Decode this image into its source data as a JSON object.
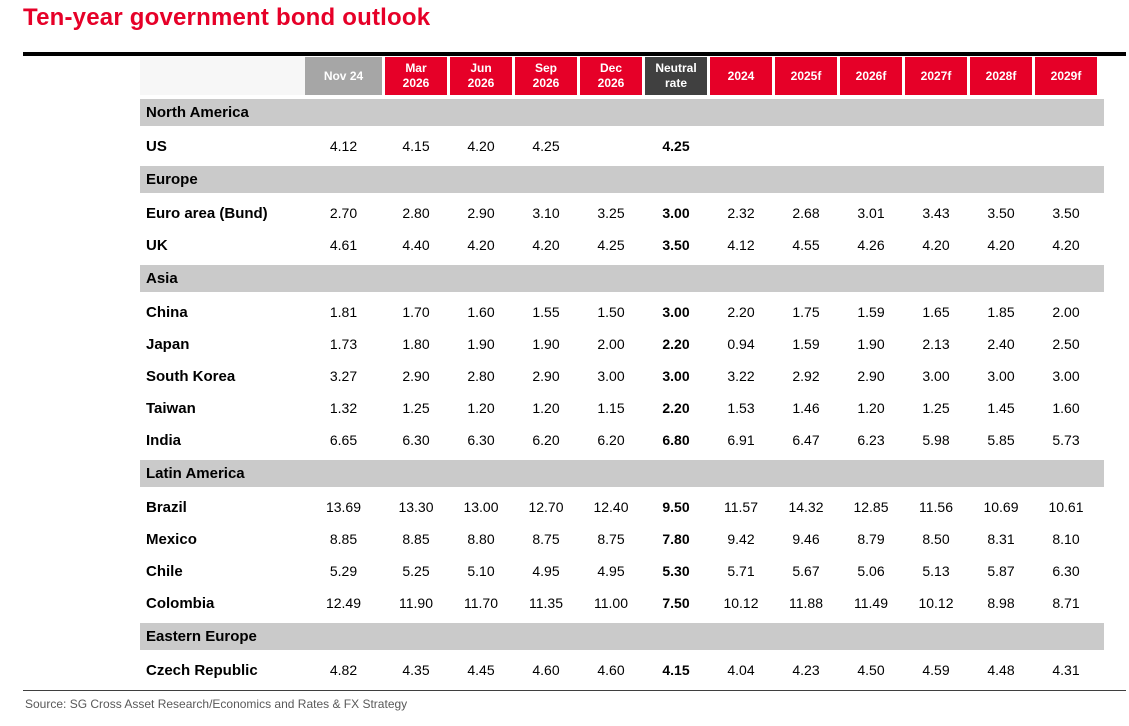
{
  "title": "Ten-year government bond outlook",
  "source": "Source: SG Cross Asset Research/Economics and Rates & FX Strategy",
  "colors": {
    "brand_red": "#e60028",
    "header_gray": "#a6a6a6",
    "neutral_dark": "#404040",
    "region_band": "#cacaca",
    "source_gray": "#595959",
    "rule_black": "#000000"
  },
  "chart_data": {
    "type": "table",
    "title": "Ten-year government bond outlook",
    "columns": [
      {
        "label": "Nov 24",
        "style": "gray"
      },
      {
        "label": "Mar\n2026",
        "style": "red"
      },
      {
        "label": "Jun\n2026",
        "style": "red"
      },
      {
        "label": "Sep\n2026",
        "style": "red"
      },
      {
        "label": "Dec\n2026",
        "style": "red"
      },
      {
        "label": "Neutral\nrate",
        "style": "dark"
      },
      {
        "label": "2024",
        "style": "red"
      },
      {
        "label": "2025f",
        "style": "red"
      },
      {
        "label": "2026f",
        "style": "red"
      },
      {
        "label": "2027f",
        "style": "red"
      },
      {
        "label": "2028f",
        "style": "red"
      },
      {
        "label": "2029f",
        "style": "red"
      }
    ],
    "sections": [
      {
        "region": "North America",
        "rows": [
          {
            "country": "US",
            "values": [
              "4.12",
              "4.15",
              "4.20",
              "4.25",
              "",
              "4.25",
              "",
              "",
              "",
              "",
              "",
              ""
            ]
          }
        ]
      },
      {
        "region": "Europe",
        "rows": [
          {
            "country": "Euro area (Bund)",
            "values": [
              "2.70",
              "2.80",
              "2.90",
              "3.10",
              "3.25",
              "3.00",
              "2.32",
              "2.68",
              "3.01",
              "3.43",
              "3.50",
              "3.50"
            ]
          },
          {
            "country": "UK",
            "values": [
              "4.61",
              "4.40",
              "4.20",
              "4.20",
              "4.25",
              "3.50",
              "4.12",
              "4.55",
              "4.26",
              "4.20",
              "4.20",
              "4.20"
            ]
          }
        ]
      },
      {
        "region": "Asia",
        "rows": [
          {
            "country": "China",
            "values": [
              "1.81",
              "1.70",
              "1.60",
              "1.55",
              "1.50",
              "3.00",
              "2.20",
              "1.75",
              "1.59",
              "1.65",
              "1.85",
              "2.00"
            ]
          },
          {
            "country": "Japan",
            "values": [
              "1.73",
              "1.80",
              "1.90",
              "1.90",
              "2.00",
              "2.20",
              "0.94",
              "1.59",
              "1.90",
              "2.13",
              "2.40",
              "2.50"
            ]
          },
          {
            "country": "South Korea",
            "values": [
              "3.27",
              "2.90",
              "2.80",
              "2.90",
              "3.00",
              "3.00",
              "3.22",
              "2.92",
              "2.90",
              "3.00",
              "3.00",
              "3.00"
            ]
          },
          {
            "country": "Taiwan",
            "values": [
              "1.32",
              "1.25",
              "1.20",
              "1.20",
              "1.15",
              "2.20",
              "1.53",
              "1.46",
              "1.20",
              "1.25",
              "1.45",
              "1.60"
            ]
          },
          {
            "country": "India",
            "values": [
              "6.65",
              "6.30",
              "6.30",
              "6.20",
              "6.20",
              "6.80",
              "6.91",
              "6.47",
              "6.23",
              "5.98",
              "5.85",
              "5.73"
            ]
          }
        ]
      },
      {
        "region": "Latin America",
        "rows": [
          {
            "country": "Brazil",
            "values": [
              "13.69",
              "13.30",
              "13.00",
              "12.70",
              "12.40",
              "9.50",
              "11.57",
              "14.32",
              "12.85",
              "11.56",
              "10.69",
              "10.61"
            ]
          },
          {
            "country": "Mexico",
            "values": [
              "8.85",
              "8.85",
              "8.80",
              "8.75",
              "8.75",
              "7.80",
              "9.42",
              "9.46",
              "8.79",
              "8.50",
              "8.31",
              "8.10"
            ]
          },
          {
            "country": "Chile",
            "values": [
              "5.29",
              "5.25",
              "5.10",
              "4.95",
              "4.95",
              "5.30",
              "5.71",
              "5.67",
              "5.06",
              "5.13",
              "5.87",
              "6.30"
            ]
          },
          {
            "country": "Colombia",
            "values": [
              "12.49",
              "11.90",
              "11.70",
              "11.35",
              "11.00",
              "7.50",
              "10.12",
              "11.88",
              "11.49",
              "10.12",
              "8.98",
              "8.71"
            ]
          }
        ]
      },
      {
        "region": "Eastern Europe",
        "rows": [
          {
            "country": "Czech Republic",
            "values": [
              "4.82",
              "4.35",
              "4.45",
              "4.60",
              "4.60",
              "4.15",
              "4.04",
              "4.23",
              "4.50",
              "4.59",
              "4.48",
              "4.31"
            ]
          }
        ]
      }
    ]
  }
}
